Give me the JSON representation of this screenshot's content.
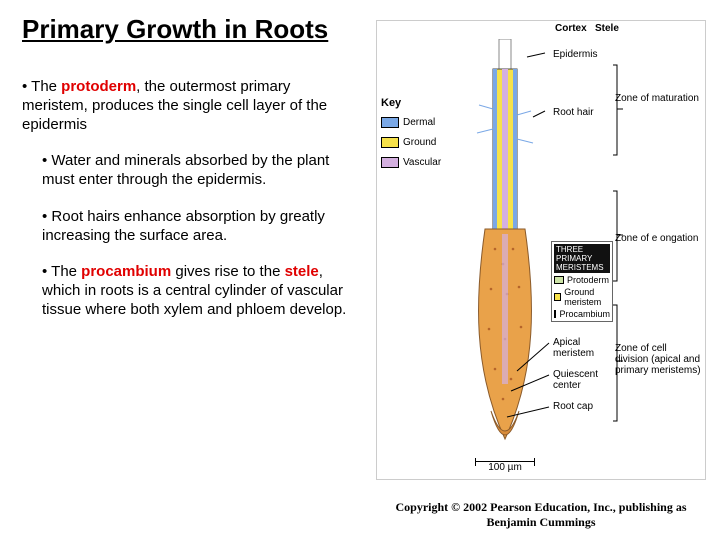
{
  "title": "Primary Growth in Roots",
  "bullets": {
    "b1a": "The ",
    "b1_hl": "protoderm",
    "b1b": ", the outermost primary meristem, produces the single cell layer of the epidermis",
    "b2": "Water and minerals absorbed by the plant must enter through the epidermis.",
    "b3": "Root hairs enhance absorption by greatly increasing the surface area.",
    "b4a": "The ",
    "b4_hl1": "procambium",
    "b4b": " gives rise to the ",
    "b4_hl2": "stele",
    "b4c": ", which in roots is a central cylinder of vascular tissue where both xylem and phloem develop."
  },
  "diagram": {
    "key_title": "Key",
    "key_items": [
      {
        "label": "Dermal",
        "color": "#7aa8e6"
      },
      {
        "label": "Ground",
        "color": "#f7e24a"
      },
      {
        "label": "Vascular",
        "color": "#d4b0e0"
      }
    ],
    "top_labels": {
      "cortex": "Cortex",
      "stele": "Stele",
      "epidermis": "Epidermis",
      "roothair": "Root hair"
    },
    "zones": {
      "maturation": "Zone of maturation",
      "elongation": "Zone of e ongation",
      "division": "Zone of cell division (apical and primary meristems)"
    },
    "meristem_box": {
      "header": "THREE PRIMARY MERISTEMS",
      "items": [
        {
          "label": "Protoderm",
          "color": "#cde4a7"
        },
        {
          "label": "Ground meristem",
          "color": "#f7e24a"
        },
        {
          "label": "Procambium",
          "color": "#7aa8e6"
        }
      ]
    },
    "lower_labels": {
      "apical": "Apical meristem",
      "quiescent": "Quiescent center",
      "rootcap": "Root cap"
    },
    "scale": "100 µm",
    "colors": {
      "epidermis": "#7aa8e6",
      "cortex_outer": "#f7e24a",
      "stele": "#d4b0e0",
      "tip_body": "#e9a24a",
      "tip_speckle": "#b5642a",
      "cap": "#d98c3a"
    }
  },
  "copyright": "Copyright © 2002 Pearson Education, Inc., publishing as Benjamin Cummings"
}
